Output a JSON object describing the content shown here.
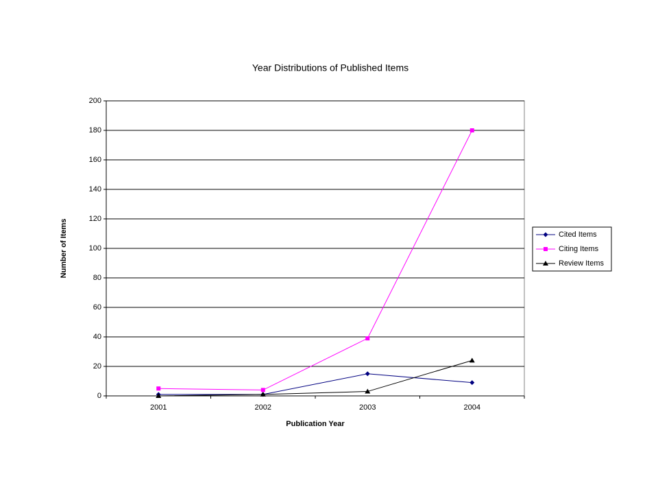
{
  "chart_data": {
    "type": "line",
    "title": "Year Distributions of Published Items",
    "x_label": "Publication Year",
    "y_label": "Number of Items",
    "categories": [
      "2001",
      "2002",
      "2003",
      "2004"
    ],
    "series": [
      {
        "name": "Cited Items",
        "color": "#000080",
        "marker": "diamond",
        "values": [
          1,
          1,
          15,
          9
        ]
      },
      {
        "name": "Citing Items",
        "color": "#ff00ff",
        "marker": "square",
        "values": [
          5,
          4,
          39,
          180
        ]
      },
      {
        "name": "Review Items",
        "color": "#000000",
        "marker": "triangle",
        "values": [
          0,
          1,
          3,
          24
        ]
      }
    ],
    "ylim": [
      0,
      200
    ],
    "yticks": [
      0,
      20,
      40,
      60,
      80,
      100,
      120,
      140,
      160,
      180,
      200
    ],
    "grid": true,
    "legend": "right"
  }
}
